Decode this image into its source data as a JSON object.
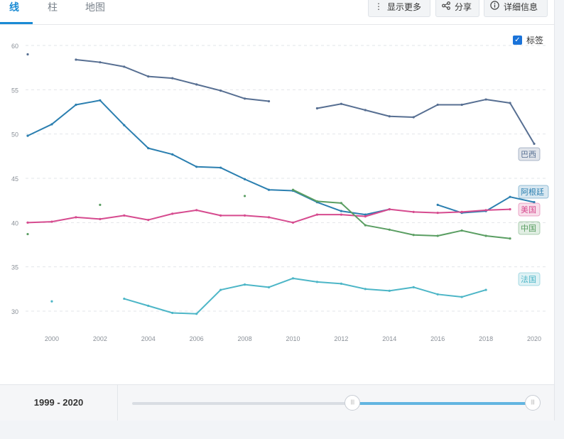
{
  "tabs": [
    {
      "label": "线",
      "active": true
    },
    {
      "label": "柱",
      "active": false
    },
    {
      "label": "地图",
      "active": false
    }
  ],
  "toolbar": {
    "more_label": "显示更多",
    "share_label": "分享",
    "details_label": "详细信息"
  },
  "labels_toggle": {
    "label": "标签",
    "checked": true
  },
  "range": {
    "start": "1999",
    "end": "2020",
    "separator": " - ",
    "start_fraction": 0.55,
    "end_fraction": 1.0
  },
  "chart_data": {
    "type": "line",
    "xlim": [
      1999,
      2020
    ],
    "ylim": [
      27.5,
      62
    ],
    "xticks": [
      2000,
      2002,
      2004,
      2006,
      2008,
      2010,
      2012,
      2014,
      2016,
      2018,
      2020
    ],
    "yticks": [
      30,
      35,
      40,
      45,
      50,
      55,
      60
    ],
    "grid": true,
    "legend": "end-of-line labels",
    "series": [
      {
        "name": "巴西",
        "color": "#576f92",
        "x": [
          1999,
          2001,
          2002,
          2003,
          2004,
          2005,
          2006,
          2007,
          2008,
          2009,
          2011,
          2012,
          2013,
          2014,
          2015,
          2016,
          2017,
          2018,
          2019,
          2020
        ],
        "y": [
          59.0,
          58.4,
          58.1,
          57.6,
          56.5,
          56.3,
          55.6,
          54.9,
          54.0,
          53.7,
          52.9,
          53.4,
          52.7,
          52.0,
          51.9,
          53.3,
          53.3,
          53.9,
          53.5,
          48.9
        ]
      },
      {
        "name": "阿根廷",
        "color": "#2b7fb0",
        "x": [
          1999,
          2000,
          2001,
          2002,
          2003,
          2004,
          2005,
          2006,
          2007,
          2008,
          2009,
          2010,
          2011,
          2012,
          2013,
          2014,
          2016,
          2017,
          2018,
          2019,
          2020
        ],
        "y": [
          49.8,
          51.1,
          53.3,
          53.8,
          51.0,
          48.4,
          47.7,
          46.3,
          46.2,
          44.9,
          43.7,
          43.6,
          42.3,
          41.3,
          40.9,
          41.5,
          42.0,
          41.1,
          41.3,
          42.9,
          42.3
        ]
      },
      {
        "name": "美国",
        "color": "#d64b8f",
        "x": [
          1999,
          2000,
          2001,
          2002,
          2003,
          2004,
          2005,
          2006,
          2007,
          2008,
          2009,
          2010,
          2011,
          2012,
          2013,
          2014,
          2015,
          2016,
          2017,
          2018,
          2019
        ],
        "y": [
          40.0,
          40.1,
          40.6,
          40.4,
          40.8,
          40.3,
          41.0,
          41.4,
          40.8,
          40.8,
          40.6,
          40.0,
          40.9,
          40.9,
          40.7,
          41.5,
          41.2,
          41.1,
          41.2,
          41.4,
          41.5
        ]
      },
      {
        "name": "中国",
        "color": "#5a9e62",
        "x": [
          1999,
          2002,
          2008,
          2010,
          2011,
          2012,
          2013,
          2014,
          2015,
          2016,
          2017,
          2018,
          2019
        ],
        "y": [
          38.7,
          42.0,
          43.0,
          43.7,
          42.4,
          42.2,
          39.7,
          39.2,
          38.6,
          38.5,
          39.1,
          38.5,
          38.2
        ]
      },
      {
        "name": "法国",
        "color": "#4db6c7",
        "x": [
          2000,
          2003,
          2004,
          2005,
          2006,
          2007,
          2008,
          2009,
          2010,
          2011,
          2012,
          2013,
          2014,
          2015,
          2016,
          2017,
          2018
        ],
        "y": [
          31.1,
          31.4,
          30.6,
          29.8,
          29.7,
          32.4,
          33.0,
          32.7,
          33.7,
          33.3,
          33.1,
          32.5,
          32.3,
          32.7,
          31.9,
          31.6,
          32.4
        ]
      }
    ]
  }
}
